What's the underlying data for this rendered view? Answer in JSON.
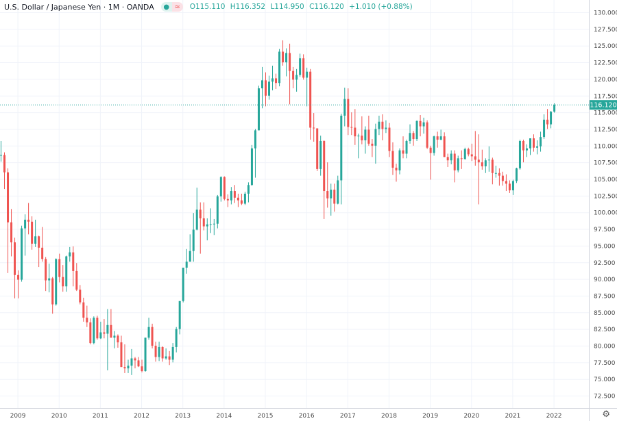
{
  "legend": {
    "title": "U.S. Dollar / Japanese Yen · 1M · OANDA",
    "status_icon": "market-open-dot",
    "status_dot": "●",
    "compare_icon": "≈",
    "open": "O115.110",
    "high": "H116.352",
    "low": "L114.950",
    "close": "C116.120",
    "change": "+1.010 (+0.88%)"
  },
  "price_axis": {
    "ticks": [
      "130.000",
      "127.500",
      "125.000",
      "122.500",
      "120.000",
      "117.500",
      "115.000",
      "112.500",
      "110.000",
      "107.500",
      "105.000",
      "102.500",
      "100.000",
      "97.500",
      "95.000",
      "92.500",
      "90.000",
      "87.500",
      "85.000",
      "82.500",
      "80.000",
      "77.500",
      "75.000",
      "72.500"
    ],
    "last_price": "116.120"
  },
  "time_axis": {
    "ticks": [
      "2009",
      "2010",
      "2011",
      "2012",
      "2013",
      "2014",
      "2015",
      "2016",
      "2017",
      "2018",
      "2019",
      "2020",
      "2021",
      "2022"
    ]
  },
  "settings_icon": "⚙",
  "colors": {
    "up": "#26a69a",
    "down": "#ef5350",
    "grid": "#f0f3fa",
    "text": "#131722"
  },
  "chart_data": {
    "type": "candlestick",
    "symbol": "USDJPY",
    "interval": "1M",
    "ylim": [
      71.5,
      131
    ],
    "start_month": "2008-08",
    "ohlc": [
      [
        108.5,
        110.7,
        107.6,
        108.6
      ],
      [
        108.6,
        109.0,
        103.5,
        106.0
      ],
      [
        106.0,
        106.6,
        90.9,
        98.5
      ],
      [
        98.5,
        100.5,
        93.4,
        95.5
      ],
      [
        95.5,
        96.2,
        87.1,
        90.6
      ],
      [
        90.6,
        91.3,
        87.1,
        89.9
      ],
      [
        89.9,
        98.0,
        89.6,
        97.6
      ],
      [
        97.6,
        99.7,
        93.5,
        98.9
      ],
      [
        98.9,
        101.4,
        96.7,
        98.6
      ],
      [
        98.6,
        99.4,
        94.4,
        95.3
      ],
      [
        95.3,
        98.9,
        94.8,
        96.4
      ],
      [
        96.4,
        96.5,
        91.8,
        94.7
      ],
      [
        94.7,
        97.8,
        92.6,
        93.0
      ],
      [
        93.0,
        93.3,
        88.2,
        89.8
      ],
      [
        89.8,
        92.3,
        88.0,
        90.1
      ],
      [
        90.1,
        90.3,
        84.8,
        86.2
      ],
      [
        86.2,
        93.1,
        86.0,
        93.0
      ],
      [
        93.0,
        93.8,
        89.5,
        90.3
      ],
      [
        90.3,
        92.1,
        88.1,
        88.9
      ],
      [
        88.9,
        93.5,
        88.1,
        93.4
      ],
      [
        93.4,
        94.8,
        92.6,
        94.0
      ],
      [
        94.0,
        94.9,
        88.9,
        91.2
      ],
      [
        91.2,
        92.4,
        88.2,
        88.4
      ],
      [
        88.4,
        89.1,
        86.2,
        86.5
      ],
      [
        86.5,
        87.2,
        83.6,
        84.2
      ],
      [
        84.2,
        86.0,
        82.8,
        83.5
      ],
      [
        83.5,
        84.1,
        80.2,
        80.4
      ],
      [
        80.4,
        84.4,
        80.2,
        84.2
      ],
      [
        84.2,
        84.5,
        80.9,
        81.1
      ],
      [
        81.1,
        83.6,
        81.0,
        82.0
      ],
      [
        82.0,
        84.0,
        81.1,
        81.8
      ],
      [
        81.8,
        85.5,
        76.3,
        83.1
      ],
      [
        83.1,
        85.5,
        81.2,
        81.2
      ],
      [
        81.2,
        82.2,
        79.6,
        81.5
      ],
      [
        81.5,
        81.7,
        79.7,
        80.5
      ],
      [
        80.5,
        81.5,
        76.9,
        76.8
      ],
      [
        76.8,
        80.2,
        75.9,
        76.6
      ],
      [
        76.6,
        77.9,
        75.9,
        77.0
      ],
      [
        77.0,
        79.5,
        75.6,
        78.1
      ],
      [
        78.1,
        78.3,
        76.6,
        77.8
      ],
      [
        77.8,
        78.3,
        76.8,
        76.9
      ],
      [
        76.9,
        77.9,
        76.0,
        76.2
      ],
      [
        76.2,
        81.2,
        76.1,
        81.2
      ],
      [
        81.2,
        84.2,
        80.9,
        82.8
      ],
      [
        82.8,
        83.3,
        79.6,
        80.0
      ],
      [
        80.0,
        80.6,
        77.6,
        78.3
      ],
      [
        78.3,
        80.6,
        77.7,
        79.8
      ],
      [
        79.8,
        79.9,
        77.6,
        78.1
      ],
      [
        78.1,
        79.6,
        77.9,
        78.4
      ],
      [
        78.4,
        79.2,
        77.1,
        77.9
      ],
      [
        77.9,
        80.4,
        77.5,
        79.8
      ],
      [
        79.8,
        82.8,
        79.0,
        82.5
      ],
      [
        82.5,
        86.6,
        81.7,
        86.7
      ],
      [
        86.7,
        91.7,
        86.5,
        91.7
      ],
      [
        91.7,
        94.5,
        90.8,
        92.6
      ],
      [
        92.6,
        96.7,
        92.6,
        94.2
      ],
      [
        94.2,
        99.9,
        92.6,
        97.4
      ],
      [
        97.4,
        103.7,
        97.3,
        100.4
      ],
      [
        100.4,
        101.5,
        93.8,
        99.1
      ],
      [
        99.1,
        101.5,
        97.3,
        97.9
      ],
      [
        97.9,
        99.1,
        95.8,
        98.2
      ],
      [
        98.2,
        100.6,
        96.9,
        98.2
      ],
      [
        98.2,
        99.0,
        96.6,
        98.3
      ],
      [
        98.3,
        102.6,
        97.6,
        102.4
      ],
      [
        102.4,
        105.4,
        101.6,
        105.3
      ],
      [
        105.3,
        105.4,
        101.8,
        102.0
      ],
      [
        102.0,
        102.7,
        100.8,
        101.8
      ],
      [
        101.8,
        103.8,
        101.2,
        103.2
      ],
      [
        103.2,
        104.1,
        101.4,
        102.2
      ],
      [
        102.2,
        102.8,
        100.8,
        101.8
      ],
      [
        101.8,
        102.8,
        101.1,
        101.3
      ],
      [
        101.3,
        103.1,
        101.1,
        102.8
      ],
      [
        102.8,
        104.5,
        101.5,
        104.1
      ],
      [
        104.1,
        110.1,
        104.0,
        109.6
      ],
      [
        109.6,
        112.5,
        105.2,
        112.3
      ],
      [
        112.3,
        119.0,
        112.3,
        118.6
      ],
      [
        118.6,
        121.8,
        115.6,
        119.8
      ],
      [
        119.8,
        121.0,
        115.9,
        117.5
      ],
      [
        117.5,
        120.5,
        116.9,
        119.6
      ],
      [
        119.6,
        122.0,
        118.3,
        120.1
      ],
      [
        120.1,
        120.8,
        118.5,
        119.4
      ],
      [
        119.4,
        124.5,
        118.9,
        124.1
      ],
      [
        124.1,
        125.8,
        122.0,
        122.5
      ],
      [
        122.5,
        124.6,
        120.4,
        123.9
      ],
      [
        123.9,
        125.3,
        116.2,
        121.2
      ],
      [
        121.2,
        121.8,
        118.6,
        119.9
      ],
      [
        119.9,
        121.5,
        118.1,
        120.6
      ],
      [
        120.6,
        123.8,
        120.3,
        123.1
      ],
      [
        123.1,
        123.7,
        119.9,
        120.2
      ],
      [
        120.2,
        121.7,
        115.9,
        121.1
      ],
      [
        121.1,
        121.5,
        110.9,
        112.7
      ],
      [
        112.7,
        114.9,
        110.6,
        112.6
      ],
      [
        112.6,
        112.6,
        106.2,
        106.5
      ],
      [
        106.5,
        111.5,
        105.5,
        110.7
      ],
      [
        110.7,
        110.8,
        99.0,
        103.2
      ],
      [
        103.2,
        107.5,
        100.7,
        102.1
      ],
      [
        102.1,
        104.3,
        99.5,
        103.4
      ],
      [
        103.4,
        104.3,
        100.1,
        101.3
      ],
      [
        101.3,
        105.5,
        101.2,
        104.8
      ],
      [
        104.8,
        114.8,
        101.2,
        114.5
      ],
      [
        114.5,
        118.7,
        112.9,
        117.0
      ],
      [
        117.0,
        118.6,
        111.6,
        112.8
      ],
      [
        112.8,
        115.0,
        111.6,
        112.7
      ],
      [
        112.7,
        115.5,
        110.1,
        111.4
      ],
      [
        111.4,
        111.8,
        108.1,
        111.5
      ],
      [
        111.5,
        114.4,
        110.2,
        110.8
      ],
      [
        110.8,
        112.9,
        108.8,
        112.4
      ],
      [
        112.4,
        114.5,
        110.0,
        110.3
      ],
      [
        110.3,
        111.0,
        108.3,
        110.0
      ],
      [
        110.0,
        113.3,
        107.3,
        112.5
      ],
      [
        112.5,
        114.5,
        111.6,
        113.6
      ],
      [
        113.6,
        114.7,
        110.8,
        112.5
      ],
      [
        112.5,
        113.8,
        111.9,
        112.7
      ],
      [
        112.7,
        113.4,
        108.3,
        109.2
      ],
      [
        109.2,
        110.5,
        105.6,
        106.7
      ],
      [
        106.7,
        107.3,
        104.6,
        106.3
      ],
      [
        106.3,
        109.6,
        105.7,
        109.3
      ],
      [
        109.3,
        111.4,
        108.1,
        108.8
      ],
      [
        108.8,
        110.9,
        108.1,
        110.7
      ],
      [
        110.7,
        113.2,
        110.3,
        111.9
      ],
      [
        111.9,
        112.2,
        110.0,
        111.0
      ],
      [
        111.0,
        113.8,
        110.7,
        113.7
      ],
      [
        113.7,
        114.6,
        111.4,
        112.9
      ],
      [
        112.9,
        114.2,
        111.8,
        113.5
      ],
      [
        113.5,
        113.8,
        109.5,
        109.7
      ],
      [
        109.7,
        110.0,
        104.9,
        108.9
      ],
      [
        108.9,
        111.5,
        108.5,
        111.4
      ],
      [
        111.4,
        112.1,
        109.7,
        110.9
      ],
      [
        110.9,
        112.4,
        110.8,
        111.4
      ],
      [
        111.4,
        112.0,
        108.3,
        108.3
      ],
      [
        108.3,
        108.8,
        106.8,
        107.8
      ],
      [
        107.8,
        109.3,
        107.2,
        108.8
      ],
      [
        108.8,
        109.3,
        104.5,
        106.3
      ],
      [
        106.3,
        108.5,
        106.0,
        108.1
      ],
      [
        108.1,
        109.3,
        106.5,
        108.0
      ],
      [
        108.0,
        109.7,
        107.9,
        109.5
      ],
      [
        109.5,
        109.7,
        108.4,
        108.7
      ],
      [
        108.7,
        110.3,
        107.7,
        108.4
      ],
      [
        108.4,
        112.2,
        107.0,
        107.9
      ],
      [
        107.9,
        111.7,
        101.2,
        107.5
      ],
      [
        107.5,
        109.4,
        106.4,
        106.9
      ],
      [
        106.9,
        108.1,
        105.9,
        107.8
      ],
      [
        107.8,
        109.9,
        106.1,
        107.9
      ],
      [
        107.9,
        108.2,
        104.2,
        105.9
      ],
      [
        105.9,
        107.0,
        105.2,
        105.9
      ],
      [
        105.9,
        106.6,
        104.0,
        105.5
      ],
      [
        105.5,
        106.1,
        104.0,
        104.7
      ],
      [
        104.7,
        105.7,
        103.2,
        104.3
      ],
      [
        104.3,
        104.8,
        102.9,
        103.3
      ],
      [
        103.3,
        104.9,
        102.6,
        104.7
      ],
      [
        104.7,
        106.7,
        104.4,
        106.6
      ],
      [
        106.6,
        110.9,
        106.4,
        110.7
      ],
      [
        110.7,
        110.9,
        107.5,
        109.3
      ],
      [
        109.3,
        110.2,
        108.3,
        109.6
      ],
      [
        109.6,
        111.1,
        108.6,
        111.1
      ],
      [
        111.1,
        111.7,
        109.1,
        109.7
      ],
      [
        109.7,
        110.8,
        108.7,
        109.9
      ],
      [
        109.9,
        112.1,
        109.1,
        111.3
      ],
      [
        111.3,
        114.7,
        111.0,
        113.9
      ],
      [
        113.9,
        115.5,
        112.5,
        113.2
      ],
      [
        113.2,
        115.2,
        112.6,
        115.1
      ],
      [
        115.11,
        116.352,
        114.95,
        116.12
      ]
    ]
  }
}
